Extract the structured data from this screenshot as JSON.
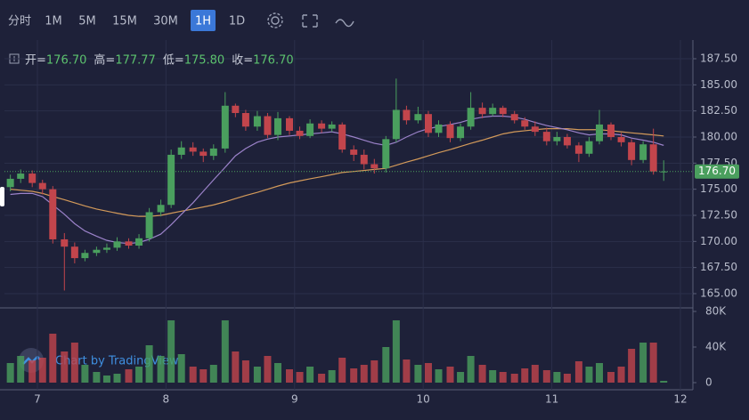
{
  "toolbar": {
    "intervals": [
      "分时",
      "1M",
      "5M",
      "15M",
      "30M",
      "1H",
      "1D"
    ],
    "active": "1H"
  },
  "chart_data": {
    "type": "candlestick",
    "watermark": "Chart by TradingView",
    "ohlc_legend": [
      {
        "label": "开=",
        "value": "176.70"
      },
      {
        "label": "高=",
        "value": "177.77"
      },
      {
        "label": "低=",
        "value": "175.80"
      },
      {
        "label": "收=",
        "value": "176.70"
      }
    ],
    "last_price": {
      "value": 176.7,
      "label": "176.70"
    },
    "up_color": "#4a9f5e",
    "down_color": "#c2454c",
    "x": [
      6.79,
      6.87,
      6.96,
      7.04,
      7.12,
      7.21,
      7.29,
      7.37,
      7.46,
      7.54,
      7.62,
      7.71,
      7.79,
      7.87,
      7.96,
      8.04,
      8.12,
      8.21,
      8.29,
      8.37,
      8.46,
      8.54,
      8.62,
      8.71,
      8.79,
      8.87,
      8.96,
      9.04,
      9.12,
      9.21,
      9.29,
      9.37,
      9.46,
      9.54,
      9.62,
      9.71,
      9.79,
      9.87,
      9.96,
      10.04,
      10.12,
      10.21,
      10.29,
      10.37,
      10.46,
      10.54,
      10.62,
      10.71,
      10.79,
      10.87,
      10.96,
      11.04,
      11.12,
      11.21,
      11.29,
      11.37,
      11.46,
      11.54,
      11.62,
      11.71,
      11.79,
      11.87
    ],
    "open": [
      175.2,
      176.0,
      176.5,
      175.6,
      175.0,
      170.2,
      169.5,
      168.4,
      168.9,
      169.2,
      169.4,
      170.0,
      169.6,
      170.3,
      172.8,
      173.5,
      178.3,
      179.0,
      178.6,
      178.2,
      178.9,
      183.0,
      182.3,
      181.0,
      182.0,
      180.2,
      181.8,
      180.6,
      180.1,
      181.3,
      180.8,
      181.2,
      178.8,
      178.3,
      177.4,
      177.0,
      179.8,
      182.6,
      181.6,
      182.2,
      180.4,
      181.2,
      179.9,
      181.0,
      182.8,
      182.2,
      182.8,
      182.2,
      181.6,
      181.0,
      180.5,
      179.6,
      180.0,
      179.2,
      178.4,
      179.6,
      181.2,
      180.0,
      179.5,
      177.8,
      179.3,
      176.7
    ],
    "high": [
      176.4,
      176.9,
      176.8,
      175.9,
      175.3,
      170.8,
      169.9,
      169.2,
      169.5,
      169.8,
      170.4,
      170.3,
      170.7,
      173.2,
      174.0,
      178.8,
      179.6,
      179.5,
      178.9,
      179.3,
      184.3,
      183.2,
      182.6,
      182.5,
      182.3,
      182.4,
      182.0,
      181.0,
      181.7,
      181.6,
      181.5,
      181.4,
      179.2,
      178.8,
      177.9,
      180.1,
      185.6,
      183.0,
      182.9,
      182.5,
      181.6,
      181.5,
      181.3,
      184.3,
      183.3,
      183.2,
      183.0,
      182.5,
      181.9,
      181.5,
      180.9,
      180.5,
      180.3,
      179.5,
      180.0,
      182.6,
      181.4,
      180.4,
      179.8,
      179.6,
      180.8,
      177.77
    ],
    "low": [
      174.8,
      175.6,
      175.2,
      174.5,
      169.8,
      165.3,
      167.9,
      168.1,
      168.6,
      168.9,
      169.1,
      169.3,
      169.3,
      170.0,
      172.4,
      173.2,
      177.9,
      178.2,
      177.6,
      177.8,
      178.5,
      181.9,
      180.6,
      180.6,
      179.9,
      179.7,
      180.2,
      179.8,
      179.9,
      180.4,
      180.5,
      178.5,
      177.7,
      176.9,
      176.5,
      176.6,
      179.5,
      181.2,
      181.3,
      180.0,
      180.0,
      179.5,
      179.6,
      180.7,
      181.8,
      182.0,
      181.9,
      181.3,
      180.7,
      180.1,
      179.2,
      179.2,
      178.9,
      177.6,
      178.1,
      179.3,
      179.7,
      179.1,
      177.3,
      177.5,
      176.4,
      175.8
    ],
    "close": [
      176.0,
      176.5,
      175.6,
      175.0,
      170.2,
      169.5,
      168.4,
      168.9,
      169.2,
      169.4,
      170.0,
      169.6,
      170.3,
      172.8,
      173.5,
      178.3,
      179.0,
      178.6,
      178.2,
      178.9,
      183.0,
      182.3,
      181.0,
      182.0,
      180.2,
      181.8,
      180.6,
      180.1,
      181.3,
      180.8,
      181.2,
      178.8,
      178.3,
      177.4,
      177.0,
      179.8,
      182.6,
      181.6,
      182.2,
      180.4,
      181.2,
      179.9,
      181.0,
      182.8,
      182.2,
      182.8,
      182.2,
      181.6,
      181.0,
      180.5,
      179.6,
      180.0,
      179.2,
      178.4,
      179.6,
      181.2,
      180.0,
      179.5,
      177.8,
      179.3,
      176.7,
      176.7
    ],
    "volume": [
      22000,
      30000,
      25000,
      28000,
      55000,
      35000,
      45000,
      20000,
      12000,
      8000,
      10000,
      15000,
      18000,
      42000,
      30000,
      70000,
      32000,
      18000,
      15000,
      20000,
      70000,
      35000,
      25000,
      18000,
      30000,
      22000,
      15000,
      12000,
      18000,
      10000,
      14000,
      28000,
      16000,
      20000,
      25000,
      40000,
      70000,
      26000,
      20000,
      22000,
      15000,
      18000,
      12000,
      30000,
      20000,
      14000,
      12000,
      10000,
      16000,
      20000,
      14000,
      12000,
      10000,
      24000,
      18000,
      22000,
      12000,
      18000,
      38000,
      45000,
      45000,
      2000
    ],
    "ma_lines": [
      {
        "color": "#d39a5a",
        "values": [
          175.0,
          174.9,
          174.8,
          174.6,
          174.3,
          174.0,
          173.7,
          173.4,
          173.1,
          172.9,
          172.7,
          172.5,
          172.4,
          172.4,
          172.5,
          172.7,
          172.9,
          173.1,
          173.3,
          173.5,
          173.8,
          174.1,
          174.4,
          174.7,
          175.0,
          175.3,
          175.6,
          175.8,
          176.0,
          176.2,
          176.4,
          176.6,
          176.7,
          176.8,
          176.9,
          177.0,
          177.3,
          177.6,
          177.9,
          178.2,
          178.5,
          178.8,
          179.1,
          179.4,
          179.7,
          180.0,
          180.3,
          180.5,
          180.6,
          180.7,
          180.8,
          180.8,
          180.8,
          180.7,
          180.7,
          180.7,
          180.6,
          180.5,
          180.4,
          180.3,
          180.2,
          180.1
        ]
      },
      {
        "color": "#9b82c9",
        "values": [
          174.5,
          174.6,
          174.6,
          174.3,
          173.5,
          172.6,
          171.7,
          171.0,
          170.5,
          170.1,
          169.9,
          169.8,
          169.9,
          170.2,
          170.7,
          171.6,
          172.6,
          173.7,
          174.8,
          175.9,
          177.1,
          178.2,
          178.9,
          179.5,
          179.8,
          180.0,
          180.1,
          180.2,
          180.3,
          180.4,
          180.5,
          180.3,
          180.0,
          179.7,
          179.4,
          179.2,
          179.5,
          180.0,
          180.5,
          180.8,
          181.0,
          181.2,
          181.4,
          181.7,
          181.9,
          182.0,
          182.0,
          181.9,
          181.7,
          181.4,
          181.1,
          180.9,
          180.7,
          180.4,
          180.2,
          180.3,
          180.3,
          180.2,
          179.9,
          179.7,
          179.5,
          179.2
        ]
      }
    ],
    "xlim": [
      6.744,
      12.097
    ],
    "xticks": [
      7,
      8,
      9,
      10,
      11,
      12
    ],
    "ylim": [
      163.72,
      189.29
    ],
    "yticks": [
      {
        "value": 165,
        "label": "165.00"
      },
      {
        "value": 167.5,
        "label": "167.50"
      },
      {
        "value": 170,
        "label": "170.00"
      },
      {
        "value": 172.5,
        "label": "172.50"
      },
      {
        "value": 175,
        "label": "175.00"
      },
      {
        "value": 177.5,
        "label": "177.50"
      },
      {
        "value": 180,
        "label": "180.00"
      },
      {
        "value": 182.5,
        "label": "182.50"
      },
      {
        "value": 185,
        "label": "185.00"
      },
      {
        "value": 187.5,
        "label": "187.50"
      }
    ],
    "vol_ylim": [
      -8000,
      83000
    ],
    "vol_yticks": [
      0,
      {
        "value": 40000,
        "label": "40K"
      },
      {
        "value": 80000,
        "label": "80K"
      }
    ],
    "grid": true
  }
}
